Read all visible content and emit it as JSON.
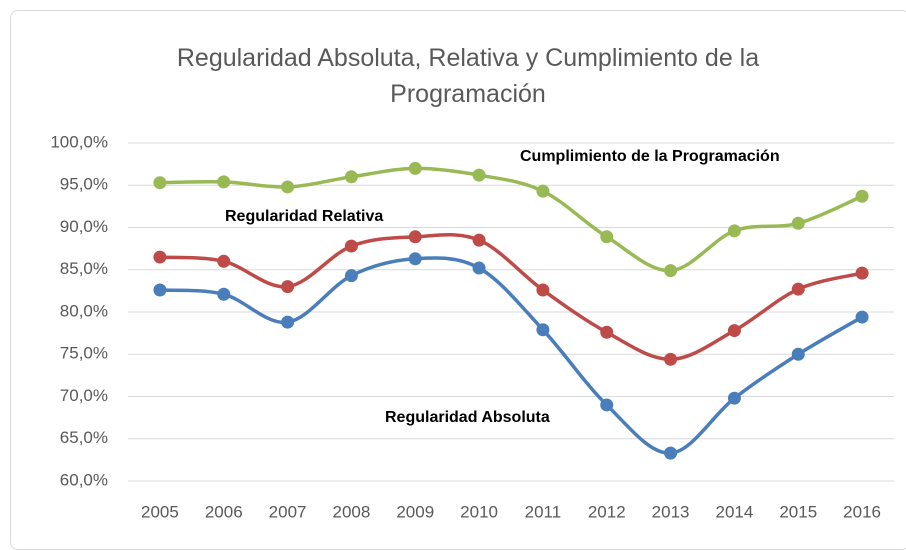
{
  "chart_data": {
    "type": "line",
    "title": "Regularidad Absoluta, Relativa y Cumplimiento de la Programación",
    "categories": [
      "2005",
      "2006",
      "2007",
      "2008",
      "2009",
      "2010",
      "2011",
      "2012",
      "2013",
      "2014",
      "2015",
      "2016"
    ],
    "series": [
      {
        "name": "Regularidad Absoluta",
        "color": "#4a7ebb",
        "values": [
          82.6,
          82.1,
          78.8,
          84.3,
          86.3,
          85.2,
          77.9,
          69.0,
          63.3,
          69.8,
          75.0,
          79.4
        ]
      },
      {
        "name": "Regularidad Relativa",
        "color": "#be4b48",
        "values": [
          86.5,
          86.0,
          83.0,
          87.8,
          88.9,
          88.5,
          82.6,
          77.6,
          74.4,
          77.8,
          82.7,
          84.6
        ]
      },
      {
        "name": "Cumplimiento de la Programación",
        "color": "#98b954",
        "values": [
          95.3,
          95.4,
          94.8,
          96.0,
          97.0,
          96.2,
          94.3,
          88.9,
          84.9,
          89.6,
          90.5,
          93.7
        ]
      }
    ],
    "ylim": [
      60,
      100
    ],
    "yticks": [
      {
        "value": 60,
        "label": "60,0%"
      },
      {
        "value": 65,
        "label": "65,0%"
      },
      {
        "value": 70,
        "label": "70,0%"
      },
      {
        "value": 75,
        "label": "75,0%"
      },
      {
        "value": 80,
        "label": "80,0%"
      },
      {
        "value": 85,
        "label": "85,0%"
      },
      {
        "value": 90,
        "label": "90,0%"
      },
      {
        "value": 95,
        "label": "95,0%"
      },
      {
        "value": 100,
        "label": "100,0%"
      }
    ],
    "grid": true
  }
}
